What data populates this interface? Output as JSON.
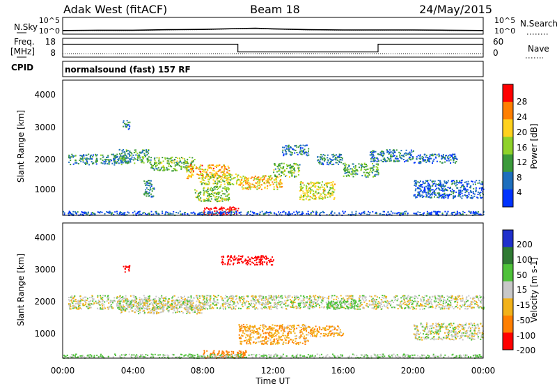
{
  "header": {
    "title": "Adak West (fitACF)",
    "beam": "Beam 18",
    "date": "24/May/2015"
  },
  "noise_panel": {
    "left_label": "N.Sky",
    "right_label": "N.Search",
    "left_ticks": [
      "10^5",
      "10^0"
    ],
    "right_ticks": [
      "10^5",
      "10^0"
    ]
  },
  "freq_panel": {
    "left_label_1": "Freq.",
    "left_label_2": "[MHz]",
    "right_label": "Nave",
    "left_ticks": [
      "18",
      "8"
    ],
    "right_ticks": [
      "60",
      "0"
    ]
  },
  "cpid": {
    "label": "CPID",
    "text": "normalsound (fast) 157 RF"
  },
  "power_colorbar": {
    "label": "Power [dB]",
    "ticks": [
      "28",
      "24",
      "20",
      "16",
      "12",
      "8",
      "4"
    ],
    "colors": [
      "#ff0000",
      "#ff7f00",
      "#ffd21e",
      "#8fd22a",
      "#3b9a3b",
      "#1e6fbd",
      "#0033ff"
    ]
  },
  "velocity_colorbar": {
    "label": "Velocity [m s-1]",
    "ticks": [
      "200",
      "100",
      "50",
      "15",
      "-15",
      "-50",
      "-100",
      "-200"
    ],
    "colors": [
      "#2030cc",
      "#2f7a33",
      "#4fc23a",
      "#c8c8c8",
      "#f2b21a",
      "#ff7f00",
      "#ff0000"
    ]
  },
  "x_ticks": [
    "00:00",
    "04:00",
    "08:00",
    "12:00",
    "16:00",
    "20:00",
    "00:00"
  ],
  "x_label": "Time UT",
  "y_ticks": [
    "4000",
    "3000",
    "2000",
    "1000"
  ],
  "y_label": "Slant Range [km]",
  "chart_data": [
    {
      "type": "line",
      "name": "noise",
      "x_hours": [
        0,
        2,
        4,
        6,
        8,
        10,
        11,
        12,
        14,
        16,
        18,
        20,
        22,
        24
      ],
      "sky_log10": [
        0.8,
        0.9,
        0.9,
        1.1,
        1.2,
        1.5,
        1.6,
        1.4,
        1.1,
        1.0,
        1.0,
        1.0,
        0.9,
        0.8
      ],
      "search_log10": [
        0.7,
        0.8,
        0.8,
        1.0,
        1.1,
        1.4,
        1.5,
        1.3,
        1.0,
        0.9,
        0.9,
        0.9,
        0.8,
        0.7
      ]
    },
    {
      "type": "line",
      "name": "frequency",
      "x_hours": [
        0,
        10,
        10,
        18,
        18,
        24
      ],
      "freq_mhz": [
        15.2,
        15.2,
        10.4,
        10.4,
        15.2,
        15.2
      ],
      "nave": [
        8,
        8,
        8,
        8,
        8,
        8
      ]
    },
    {
      "type": "heatmap",
      "name": "power",
      "xlim_hours": [
        0,
        24
      ],
      "ylim_km": [
        180,
        4600
      ],
      "patches": [
        {
          "x": [
            0.3,
            3.6
          ],
          "y": [
            1850,
            2200
          ],
          "v": 10
        },
        {
          "x": [
            3.2,
            5.0
          ],
          "y": [
            1900,
            2350
          ],
          "v": 11
        },
        {
          "x": [
            3.4,
            3.8
          ],
          "y": [
            3000,
            3300
          ],
          "v": 9
        },
        {
          "x": [
            5.0,
            7.5
          ],
          "y": [
            1650,
            2100
          ],
          "v": 14
        },
        {
          "x": [
            7.0,
            9.5
          ],
          "y": [
            1400,
            1850
          ],
          "v": 22
        },
        {
          "x": [
            7.8,
            10.0
          ],
          "y": [
            1200,
            1550
          ],
          "v": 17
        },
        {
          "x": [
            7.5,
            9.5
          ],
          "y": [
            650,
            1150
          ],
          "v": 15
        },
        {
          "x": [
            8.0,
            10.0
          ],
          "y": [
            200,
            480
          ],
          "v": 30
        },
        {
          "x": [
            10.0,
            12.5
          ],
          "y": [
            1050,
            1500
          ],
          "v": 20
        },
        {
          "x": [
            12.0,
            13.5
          ],
          "y": [
            1450,
            1900
          ],
          "v": 14
        },
        {
          "x": [
            12.5,
            14.0
          ],
          "y": [
            2150,
            2500
          ],
          "v": 9
        },
        {
          "x": [
            13.5,
            15.5
          ],
          "y": [
            700,
            1300
          ],
          "v": 18
        },
        {
          "x": [
            14.5,
            16.0
          ],
          "y": [
            1850,
            2200
          ],
          "v": 9
        },
        {
          "x": [
            16.0,
            18.0
          ],
          "y": [
            1450,
            1900
          ],
          "v": 13
        },
        {
          "x": [
            17.5,
            20.0
          ],
          "y": [
            1950,
            2350
          ],
          "v": 9
        },
        {
          "x": [
            20.0,
            22.5
          ],
          "y": [
            1900,
            2200
          ],
          "v": 8
        },
        {
          "x": [
            20.0,
            24.0
          ],
          "y": [
            750,
            1350
          ],
          "v": 7
        },
        {
          "x": [
            4.6,
            5.2
          ],
          "y": [
            800,
            1350
          ],
          "v": 9
        },
        {
          "x": [
            0.0,
            24.0
          ],
          "y": [
            200,
            330
          ],
          "v": 6
        }
      ]
    },
    {
      "type": "heatmap",
      "name": "velocity",
      "xlim_hours": [
        0,
        24
      ],
      "ylim_km": [
        180,
        4600
      ],
      "patches": [
        {
          "x": [
            0.3,
            24.0
          ],
          "y": [
            1800,
            2250
          ],
          "v": 0
        },
        {
          "x": [
            3.2,
            8.0
          ],
          "y": [
            1650,
            2100
          ],
          "v": 0
        },
        {
          "x": [
            9.0,
            12.0
          ],
          "y": [
            3250,
            3550
          ],
          "v": -250
        },
        {
          "x": [
            3.4,
            3.8
          ],
          "y": [
            3000,
            3250
          ],
          "v": -250
        },
        {
          "x": [
            10.0,
            14.0
          ],
          "y": [
            650,
            1300
          ],
          "v": -40
        },
        {
          "x": [
            14.0,
            16.0
          ],
          "y": [
            900,
            1250
          ],
          "v": -40
        },
        {
          "x": [
            15.0,
            17.0
          ],
          "y": [
            1800,
            2100
          ],
          "v": 40
        },
        {
          "x": [
            8.0,
            10.5
          ],
          "y": [
            200,
            450
          ],
          "v": -90
        },
        {
          "x": [
            0.0,
            24.0
          ],
          "y": [
            200,
            330
          ],
          "v": 20
        },
        {
          "x": [
            20.0,
            24.0
          ],
          "y": [
            800,
            1350
          ],
          "v": 0
        }
      ]
    }
  ]
}
